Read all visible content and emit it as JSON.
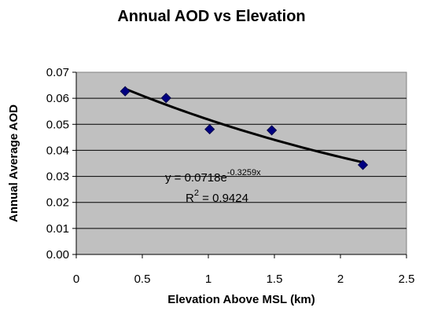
{
  "chart_data": {
    "type": "scatter",
    "title": "Annual AOD vs Elevation",
    "xlabel": "Elevation Above MSL (km)",
    "ylabel": "Annual Average AOD",
    "xlim": [
      0,
      2.5
    ],
    "ylim": [
      0,
      0.07
    ],
    "x_ticks": [
      "0",
      "0.5",
      "1",
      "1.5",
      "2",
      "2.5"
    ],
    "y_ticks": [
      "0.00",
      "0.01",
      "0.02",
      "0.03",
      "0.04",
      "0.05",
      "0.06",
      "0.07"
    ],
    "grid": "horizontal",
    "plot_background": "#c0c0c0",
    "marker": "diamond",
    "marker_color": "#000080",
    "trendline_color": "#000000",
    "points": [
      {
        "x": 0.37,
        "y": 0.0627
      },
      {
        "x": 0.68,
        "y": 0.0601
      },
      {
        "x": 1.01,
        "y": 0.0481
      },
      {
        "x": 1.48,
        "y": 0.0477
      },
      {
        "x": 2.17,
        "y": 0.0344
      }
    ],
    "trendline": {
      "type": "exponential",
      "a": 0.0718,
      "b": -0.3259,
      "x_range": [
        0.37,
        2.17
      ],
      "equation_prefix": "y = 0.0718e",
      "equation_exponent": "-0.3259x",
      "r2_prefix": "R",
      "r2_exponent": "2",
      "r2_value": " = 0.9424"
    }
  }
}
